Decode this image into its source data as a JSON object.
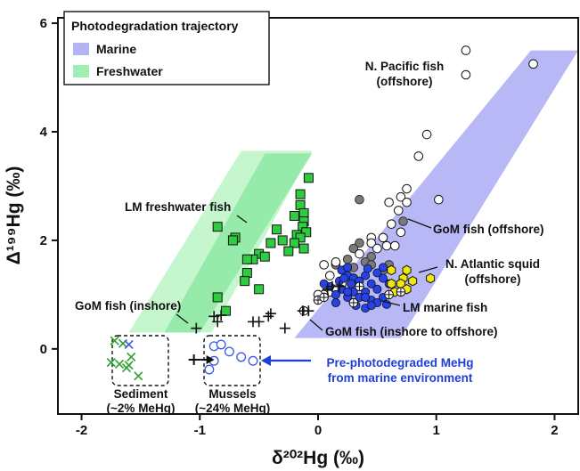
{
  "chart_data": {
    "type": "scatter",
    "xlabel": "δ²⁰²Hg (‰)",
    "ylabel": "Δ¹⁹⁹Hg (‰)",
    "xlim": [
      -2.2,
      2.2
    ],
    "ylim": [
      -1.2,
      6.1
    ],
    "xticks": [
      -2,
      -1,
      0,
      1,
      2
    ],
    "yticks": [
      0,
      2,
      4,
      6
    ],
    "grid": false,
    "legend": {
      "title": "Photodegradation trajectory",
      "placement": "top-left",
      "entries": [
        {
          "label": "Marine",
          "color": "#b4b4f5"
        },
        {
          "label": "Freshwater",
          "color": "#9ef0b0"
        }
      ]
    },
    "colors": {
      "marine_band": "#b4b4f5",
      "fresh_outer": "#bff5c9",
      "fresh_inner": "#86e69d",
      "lm_fresh": "#2ecc40",
      "gom_off": "#ffffff",
      "gray": "#7a7a7a",
      "lm_marine": "#2742e8",
      "squid": "#f2e60a",
      "sediment_x": "#2ca02c",
      "sediment_x2": "#3a57e8",
      "mussel": "#3a57e8",
      "arrow": "#1f3fd6"
    },
    "bands": {
      "marine": [
        [
          -0.2,
          0.2
        ],
        [
          0.7,
          0.2
        ],
        [
          2.2,
          5.5
        ],
        [
          1.8,
          5.5
        ]
      ],
      "fresh_outer": [
        [
          -1.6,
          0.3
        ],
        [
          -0.9,
          0.3
        ],
        [
          -0.05,
          3.65
        ],
        [
          -0.65,
          3.65
        ]
      ],
      "fresh_inner": [
        [
          -1.3,
          0.3
        ],
        [
          -1.0,
          0.3
        ],
        [
          -0.05,
          3.6
        ],
        [
          -0.45,
          3.6
        ]
      ]
    },
    "series": [
      {
        "name": "LM freshwater fish",
        "marker": "square",
        "points": [
          [
            -0.08,
            3.15
          ],
          [
            -0.15,
            2.85
          ],
          [
            -0.15,
            2.65
          ],
          [
            -0.12,
            2.5
          ],
          [
            -0.2,
            2.45
          ],
          [
            -0.12,
            2.35
          ],
          [
            -0.13,
            2.25
          ],
          [
            -0.1,
            2.15
          ],
          [
            -0.18,
            2.1
          ],
          [
            -0.35,
            2.2
          ],
          [
            -0.15,
            2.05
          ],
          [
            -0.3,
            2.0
          ],
          [
            -0.2,
            1.95
          ],
          [
            -0.4,
            1.95
          ],
          [
            -0.12,
            1.85
          ],
          [
            -0.25,
            1.8
          ],
          [
            -0.5,
            1.75
          ],
          [
            -0.45,
            1.7
          ],
          [
            -0.55,
            1.65
          ],
          [
            -0.6,
            1.65
          ],
          [
            -0.85,
            2.25
          ],
          [
            -0.7,
            2.05
          ],
          [
            -0.72,
            2.0
          ],
          [
            -0.6,
            1.4
          ],
          [
            -0.62,
            1.25
          ],
          [
            -0.85,
            0.95
          ],
          [
            -0.78,
            0.7
          ],
          [
            -0.5,
            1.1
          ]
        ]
      },
      {
        "name": "GoM fish (offshore)",
        "marker": "circle-open",
        "points": [
          [
            1.25,
            5.5
          ],
          [
            1.25,
            5.05
          ],
          [
            1.82,
            5.25
          ],
          [
            0.92,
            3.95
          ],
          [
            0.85,
            3.55
          ],
          [
            0.75,
            2.95
          ],
          [
            1.02,
            2.75
          ],
          [
            0.7,
            2.8
          ],
          [
            0.6,
            2.7
          ],
          [
            0.68,
            2.55
          ],
          [
            0.75,
            2.7
          ],
          [
            0.62,
            2.3
          ],
          [
            0.7,
            2.15
          ],
          [
            0.45,
            2.05
          ],
          [
            0.55,
            2.05
          ],
          [
            0.45,
            1.95
          ],
          [
            0.58,
            1.9
          ],
          [
            0.65,
            1.9
          ],
          [
            0.5,
            1.85
          ],
          [
            0.35,
            1.75
          ],
          [
            0.15,
            1.6
          ],
          [
            0.22,
            1.45
          ],
          [
            0.1,
            1.35
          ],
          [
            0.05,
            1.55
          ],
          [
            0.3,
            1.3
          ],
          [
            0.2,
            1.2
          ],
          [
            0.1,
            1.05
          ],
          [
            0.05,
            1.0
          ],
          [
            0.0,
            1.0
          ],
          [
            0.15,
            1.1
          ]
        ]
      },
      {
        "name": "Gray",
        "marker": "circle-gray",
        "points": [
          [
            0.72,
            2.35
          ],
          [
            0.35,
            2.75
          ],
          [
            0.35,
            1.95
          ],
          [
            0.3,
            1.85
          ],
          [
            0.45,
            1.7
          ],
          [
            0.4,
            1.6
          ],
          [
            0.3,
            1.5
          ],
          [
            0.15,
            1.55
          ],
          [
            0.45,
            1.55
          ],
          [
            0.25,
            1.65
          ],
          [
            0.6,
            1.55
          ],
          [
            0.55,
            1.45
          ]
        ]
      },
      {
        "name": "LM marine fish",
        "marker": "circle-filled",
        "points": [
          [
            0.2,
            1.45
          ],
          [
            0.25,
            1.35
          ],
          [
            0.3,
            1.3
          ],
          [
            0.35,
            1.25
          ],
          [
            0.4,
            1.35
          ],
          [
            0.28,
            1.2
          ],
          [
            0.18,
            1.25
          ],
          [
            0.35,
            1.15
          ],
          [
            0.45,
            1.2
          ],
          [
            0.3,
            1.05
          ],
          [
            0.4,
            1.05
          ],
          [
            0.5,
            1.1
          ],
          [
            0.2,
            1.1
          ],
          [
            0.15,
            1.0
          ],
          [
            0.25,
            0.95
          ],
          [
            0.35,
            0.95
          ],
          [
            0.45,
            0.9
          ],
          [
            0.55,
            0.95
          ],
          [
            0.5,
            0.85
          ],
          [
            0.3,
            0.85
          ],
          [
            0.4,
            0.75
          ],
          [
            0.45,
            0.8
          ],
          [
            0.6,
            1.0
          ],
          [
            0.55,
            1.3
          ],
          [
            0.5,
            1.4
          ],
          [
            0.6,
            1.2
          ],
          [
            0.1,
            1.15
          ],
          [
            0.25,
            1.5
          ],
          [
            0.55,
            1.5
          ],
          [
            0.22,
            1.3
          ],
          [
            0.4,
            0.95
          ],
          [
            0.25,
            1.05
          ],
          [
            0.05,
            1.2
          ],
          [
            0.32,
            0.8
          ],
          [
            0.58,
            0.82
          ],
          [
            0.15,
            0.85
          ],
          [
            0.42,
            1.48
          ]
        ]
      },
      {
        "name": "N. Atlantic squid",
        "marker": "hexagon",
        "points": [
          [
            0.62,
            1.45
          ],
          [
            0.75,
            1.45
          ],
          [
            0.72,
            1.3
          ],
          [
            0.7,
            1.2
          ],
          [
            0.62,
            1.2
          ],
          [
            0.75,
            1.1
          ],
          [
            0.65,
            1.05
          ],
          [
            0.8,
            1.25
          ],
          [
            0.95,
            1.3
          ]
        ]
      },
      {
        "name": "GoM fish (inshore)",
        "marker": "plus",
        "points": [
          [
            -1.03,
            0.38
          ],
          [
            -0.88,
            0.6
          ],
          [
            -0.82,
            0.62
          ],
          [
            -0.85,
            0.5
          ],
          [
            -0.5,
            0.5
          ],
          [
            -0.55,
            0.5
          ],
          [
            -0.42,
            0.6
          ],
          [
            -0.4,
            0.65
          ],
          [
            -0.28,
            0.38
          ],
          [
            -0.13,
            0.7
          ],
          [
            -0.08,
            0.7
          ],
          [
            0.08,
            1.1
          ],
          [
            0.12,
            1.15
          ],
          [
            0.18,
            1.15
          ]
        ]
      },
      {
        "name": "GoM fish (inshore to offshore)",
        "marker": "circle-plus",
        "points": [
          [
            -0.12,
            0.7
          ],
          [
            0.3,
            0.85
          ],
          [
            0.6,
            1.0
          ],
          [
            0.0,
            0.9
          ],
          [
            0.35,
            1.15
          ],
          [
            0.05,
            0.95
          ],
          [
            0.7,
            1.05
          ]
        ]
      },
      {
        "name": "Sediment (~2% MeHg)",
        "marker": "x",
        "points": [
          [
            -1.75,
            -0.25
          ],
          [
            -1.68,
            -0.28
          ],
          [
            -1.62,
            -0.35
          ],
          [
            -1.6,
            -0.3
          ],
          [
            -1.52,
            -0.5
          ],
          [
            -1.58,
            -0.15
          ],
          [
            -1.72,
            0.15
          ],
          [
            -1.65,
            0.1
          ],
          [
            -1.6,
            0.08
          ]
        ]
      },
      {
        "name": "Mussels (~24% MeHg)",
        "marker": "circle-blue-open",
        "points": [
          [
            -0.88,
            0.05
          ],
          [
            -0.82,
            0.08
          ],
          [
            -0.75,
            -0.05
          ],
          [
            -0.88,
            -0.22
          ],
          [
            -0.65,
            -0.15
          ],
          [
            -0.55,
            -0.22
          ],
          [
            -0.92,
            -0.38
          ]
        ]
      }
    ],
    "mehg_marker": {
      "x": -1.05,
      "y": -0.2
    },
    "annotations": {
      "npac_line1": "N. Pacific fish",
      "npac_line2": "(offshore)",
      "lm_fresh": "LM freshwater fish",
      "gom_off": "GoM fish (offshore)",
      "nat_line1": "N. Atlantic squid",
      "nat_line2": "(offshore)",
      "lm_marine": "LM marine fish",
      "gom_in": "GoM fish (inshore)",
      "gom_in_off": "GoM fish (inshore to offshore)",
      "sediment_line1": "Sediment",
      "sediment_line2": "(~2% MeHg)",
      "mussels_line1": "Mussels",
      "mussels_line2": "(~24% MeHg)",
      "prephoto_line1": "Pre-photodegraded MeHg",
      "prephoto_line2": "from marine environment"
    }
  }
}
